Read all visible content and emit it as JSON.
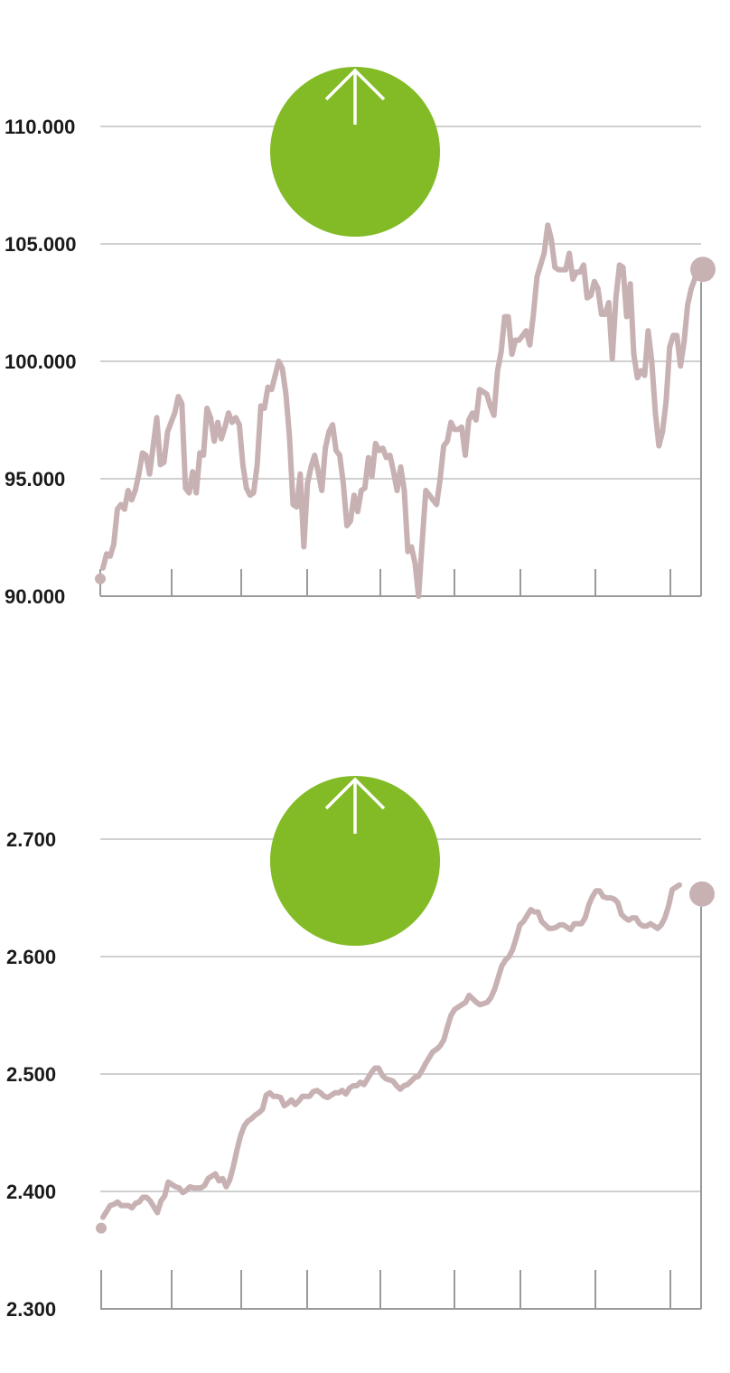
{
  "colors": {
    "line": "#c8b1b3",
    "grid": "#b5b5b5",
    "axis": "#9a9a9a",
    "badge": "#83bb26",
    "arrow": "#ffffff"
  },
  "chart_data": [
    {
      "type": "line",
      "indicator_icon": "arrow-up-icon",
      "ylim": [
        90000,
        110000
      ],
      "y_ticks": [
        "90.000",
        "95.000",
        "100.000",
        "105.000",
        "110.000"
      ],
      "y_tick_values": [
        90000,
        95000,
        100000,
        105000,
        110000
      ],
      "x_tick_count": 9,
      "series": [
        {
          "values": [
            91200,
            91800,
            91700,
            92200,
            93700,
            93900,
            93700,
            94500,
            94100,
            94500,
            95200,
            96100,
            96000,
            95200,
            96400,
            97600,
            95600,
            95700,
            97000,
            97400,
            97800,
            98500,
            98200,
            94600,
            94400,
            95300,
            94400,
            96100,
            96000,
            98000,
            97600,
            96600,
            97400,
            96700,
            97200,
            97800,
            97400,
            97600,
            97300,
            95600,
            94600,
            94300,
            94400,
            95600,
            98100,
            98000,
            98900,
            98800,
            99400,
            100000,
            99700,
            98600,
            96800,
            93900,
            93800,
            95200,
            92100,
            94800,
            95500,
            96000,
            95300,
            94500,
            96300,
            97000,
            97300,
            96200,
            96000,
            94800,
            93000,
            93200,
            94300,
            93600,
            94500,
            94600,
            95900,
            95100,
            96500,
            96200,
            96300,
            95900,
            96000,
            95300,
            94500,
            95500,
            94500,
            91900,
            92100,
            91400,
            90000,
            92300,
            94500,
            94300,
            94100,
            93900,
            95000,
            96400,
            96600,
            97400,
            97100,
            97100,
            97200,
            96000,
            97500,
            97800,
            97500,
            98800,
            98700,
            98600,
            98100,
            97700,
            99600,
            100400,
            101900,
            101900,
            100300,
            100900,
            100900,
            101100,
            101300,
            100700,
            102000,
            103600,
            104100,
            104600,
            105800,
            105200,
            104000,
            103900,
            103900,
            103900,
            104600,
            103500,
            103800,
            103800,
            104100,
            102700,
            102800,
            103400,
            103100,
            102000,
            102000,
            102500,
            100100,
            102700,
            104100,
            104000,
            101900,
            103300,
            100300,
            99300,
            99600,
            99400,
            101300,
            100000,
            97800,
            96400,
            97000,
            98300,
            100600,
            101100,
            101100,
            99800,
            100800,
            102400,
            103100,
            103500,
            104300
          ]
        }
      ]
    },
    {
      "type": "line",
      "indicator_icon": "arrow-up-icon",
      "ylim": [
        2300,
        2700
      ],
      "y_ticks": [
        "2.300",
        "2.400",
        "2.500",
        "2.600",
        "2.700"
      ],
      "y_tick_values": [
        2300,
        2400,
        2500,
        2600,
        2700
      ],
      "x_tick_count": 9,
      "series": [
        {
          "values": [
            2378,
            2383,
            2388,
            2389,
            2391,
            2388,
            2388,
            2388,
            2386,
            2390,
            2391,
            2395,
            2395,
            2392,
            2387,
            2382,
            2392,
            2396,
            2408,
            2406,
            2404,
            2403,
            2399,
            2401,
            2404,
            2403,
            2403,
            2403,
            2405,
            2411,
            2413,
            2415,
            2409,
            2411,
            2404,
            2410,
            2422,
            2436,
            2448,
            2456,
            2460,
            2462,
            2465,
            2467,
            2470,
            2482,
            2484,
            2481,
            2481,
            2480,
            2473,
            2475,
            2478,
            2474,
            2477,
            2481,
            2481,
            2481,
            2485,
            2486,
            2484,
            2481,
            2480,
            2482,
            2484,
            2484,
            2486,
            2483,
            2488,
            2490,
            2490,
            2493,
            2491,
            2496,
            2501,
            2505,
            2505,
            2499,
            2496,
            2495,
            2494,
            2490,
            2487,
            2490,
            2491,
            2494,
            2497,
            2498,
            2503,
            2509,
            2514,
            2519,
            2521,
            2524,
            2529,
            2540,
            2550,
            2555,
            2557,
            2559,
            2561,
            2567,
            2564,
            2561,
            2559,
            2560,
            2561,
            2565,
            2572,
            2582,
            2592,
            2597,
            2600,
            2606,
            2616,
            2627,
            2630,
            2635,
            2640,
            2638,
            2638,
            2630,
            2627,
            2624,
            2624,
            2625,
            2627,
            2627,
            2625,
            2623,
            2628,
            2628,
            2628,
            2633,
            2644,
            2651,
            2656,
            2656,
            2651,
            2650,
            2650,
            2649,
            2646,
            2636,
            2633,
            2631,
            2633,
            2633,
            2628,
            2626,
            2626,
            2628,
            2626,
            2624,
            2627,
            2633,
            2643,
            2657,
            2659,
            2661
          ]
        }
      ]
    }
  ]
}
